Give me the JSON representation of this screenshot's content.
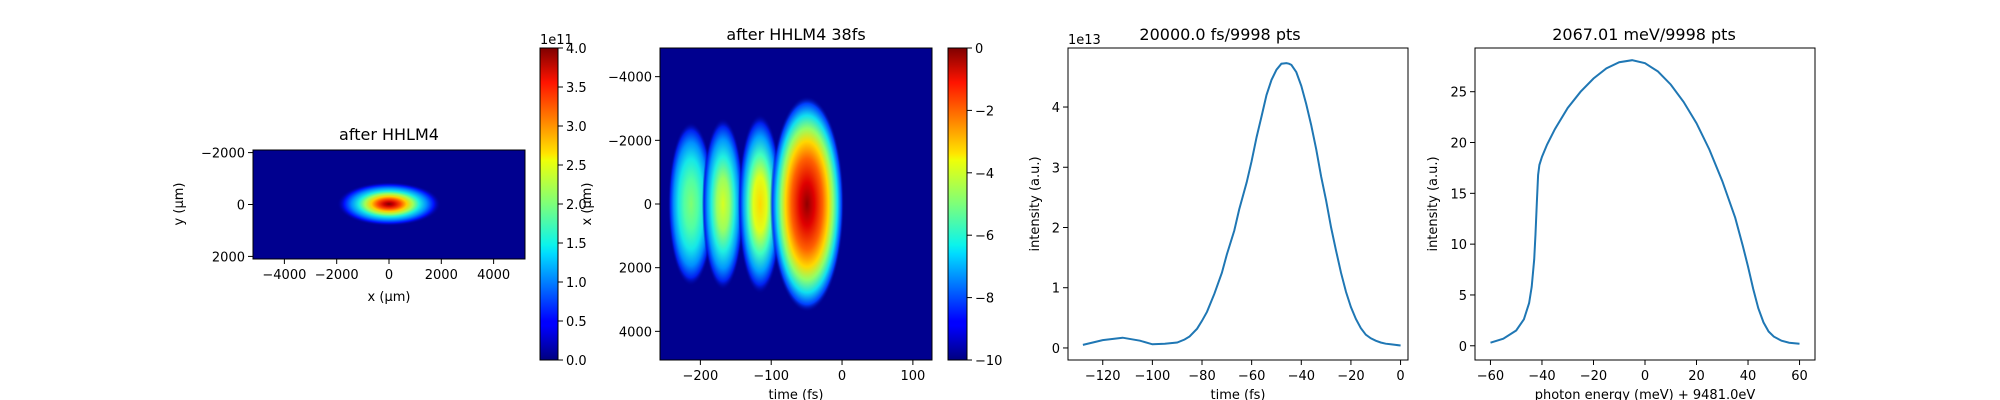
{
  "chart_data": [
    {
      "type": "heatmap",
      "title": "after HHLM4",
      "xlabel": "x (μm)",
      "ylabel": "y (μm)",
      "xlim": [
        -5200,
        5200
      ],
      "ylim": [
        2100,
        -2100
      ],
      "xticks": [
        -4000,
        -2000,
        0,
        2000,
        4000
      ],
      "yticks": [
        -2000,
        0,
        2000
      ],
      "xtick_labels": [
        "−4000",
        "−2000",
        "0",
        "2000",
        "4000"
      ],
      "ytick_labels": [
        "−2000",
        "0",
        "2000"
      ],
      "colormap": "jet",
      "beam": {
        "center_x": 0,
        "center_y": 0,
        "peak": 400000000000.0
      },
      "colorbar": {
        "min": 0.0,
        "max": 4.0,
        "scale_label": "1e11",
        "ticks": [
          0.0,
          0.5,
          1.0,
          1.5,
          2.0,
          2.5,
          3.0,
          3.5,
          4.0
        ],
        "tick_labels": [
          "0.0",
          "0.5",
          "1.0",
          "1.5",
          "2.0",
          "2.5",
          "3.0",
          "3.5",
          "4.0"
        ]
      }
    },
    {
      "type": "heatmap",
      "title": "after HHLM4 38fs",
      "xlabel": "time (fs)",
      "ylabel": "x (μm)",
      "xlim": [
        -257,
        127
      ],
      "ylim": [
        4900,
        -4900
      ],
      "xticks": [
        -200,
        -100,
        0,
        100
      ],
      "yticks": [
        -4000,
        -2000,
        0,
        2000,
        4000
      ],
      "xtick_labels": [
        "−200",
        "−100",
        "0",
        "100"
      ],
      "ytick_labels": [
        "−4000",
        "−2000",
        "0",
        "2000",
        "4000"
      ],
      "colormap": "jet",
      "pulses_time_fs": [
        -210,
        -160,
        -110,
        -45
      ],
      "colorbar": {
        "min": -10,
        "max": 0,
        "ticks": [
          -10,
          -8,
          -6,
          -4,
          -2,
          0
        ],
        "tick_labels": [
          "−10",
          "−8",
          "−6",
          "−4",
          "−2",
          "0"
        ]
      }
    },
    {
      "type": "line",
      "title": "20000.0 fs/9998 pts",
      "xlabel": "time (fs)",
      "ylabel": "intensity (a.u.)",
      "scale_label": "1e13",
      "xlim": [
        -134,
        3
      ],
      "ylim": [
        -0.2,
        4.98
      ],
      "xticks": [
        -120,
        -100,
        -80,
        -60,
        -40,
        -20,
        0
      ],
      "yticks": [
        0,
        1,
        2,
        3,
        4
      ],
      "xtick_labels": [
        "−120",
        "−100",
        "−80",
        "−60",
        "−40",
        "−20",
        "0"
      ],
      "ytick_labels": [
        "0",
        "1",
        "2",
        "3",
        "4"
      ],
      "color": "#1f77b4",
      "x": [
        -128,
        -120,
        -112,
        -105,
        -100,
        -95,
        -90,
        -87,
        -85,
        -82,
        -80,
        -78,
        -75,
        -72,
        -70,
        -67,
        -65,
        -62,
        -60,
        -58,
        -56,
        -54,
        -52,
        -50,
        -48,
        -46,
        -45,
        -44,
        -42,
        -40,
        -38,
        -36,
        -34,
        -32,
        -30,
        -28,
        -26,
        -24,
        -22,
        -20,
        -18,
        -16,
        -14,
        -12,
        -10,
        -8,
        -6,
        -4,
        -2,
        0
      ],
      "y": [
        0.05,
        0.13,
        0.17,
        0.12,
        0.06,
        0.07,
        0.09,
        0.14,
        0.19,
        0.32,
        0.45,
        0.6,
        0.9,
        1.25,
        1.55,
        1.95,
        2.3,
        2.75,
        3.1,
        3.5,
        3.85,
        4.2,
        4.45,
        4.62,
        4.72,
        4.73,
        4.72,
        4.7,
        4.58,
        4.35,
        4.05,
        3.7,
        3.3,
        2.85,
        2.45,
        2.0,
        1.62,
        1.25,
        0.93,
        0.68,
        0.48,
        0.33,
        0.22,
        0.16,
        0.12,
        0.09,
        0.07,
        0.06,
        0.05,
        0.04
      ]
    },
    {
      "type": "line",
      "title": "2067.01 meV/9998 pts",
      "xlabel": "photon energy (meV) + 9481.0eV",
      "ylabel": "intensity (a.u.)",
      "xlim": [
        -66,
        66
      ],
      "ylim": [
        -1.4,
        29.3
      ],
      "xticks": [
        -60,
        -40,
        -20,
        0,
        20,
        40,
        60
      ],
      "yticks": [
        0,
        5,
        10,
        15,
        20,
        25
      ],
      "xtick_labels": [
        "−60",
        "−40",
        "−20",
        "0",
        "20",
        "40",
        "60"
      ],
      "ytick_labels": [
        "0",
        "5",
        "10",
        "15",
        "20",
        "25"
      ],
      "color": "#1f77b4",
      "x": [
        -60,
        -55,
        -50,
        -47,
        -45,
        -44,
        -43,
        -42.5,
        -42,
        -41.5,
        -41,
        -40,
        -38,
        -35,
        -30,
        -25,
        -20,
        -15,
        -10,
        -5,
        0,
        5,
        10,
        15,
        20,
        25,
        30,
        35,
        38,
        40,
        42,
        44,
        46,
        48,
        50,
        53,
        56,
        60
      ],
      "y": [
        0.3,
        0.7,
        1.5,
        2.6,
        4.2,
        5.8,
        8.5,
        11.0,
        14.0,
        16.8,
        17.8,
        18.6,
        19.8,
        21.3,
        23.4,
        25.0,
        26.3,
        27.3,
        27.9,
        28.1,
        27.8,
        27.0,
        25.7,
        24.0,
        21.9,
        19.3,
        16.2,
        12.6,
        9.8,
        7.8,
        5.6,
        3.7,
        2.3,
        1.4,
        0.9,
        0.5,
        0.3,
        0.2
      ]
    }
  ]
}
